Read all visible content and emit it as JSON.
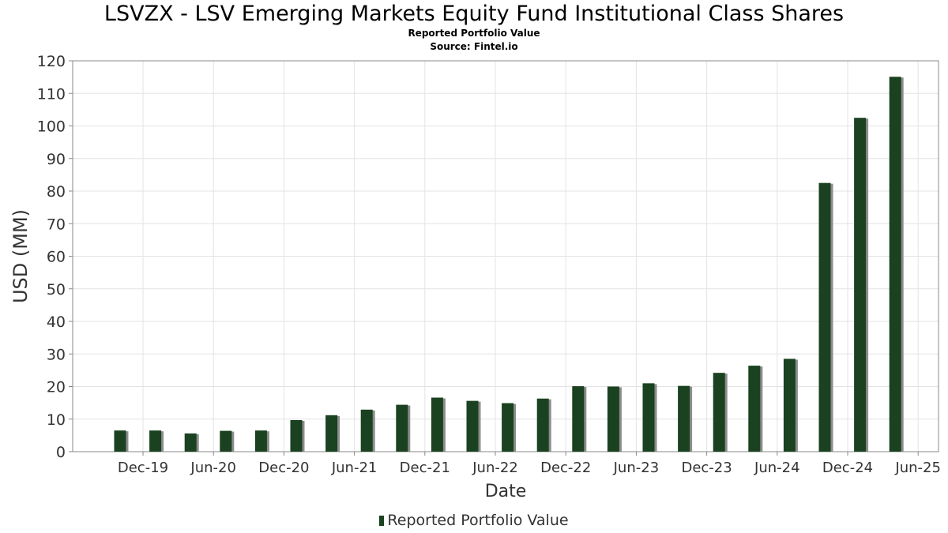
{
  "chart_data": {
    "type": "bar",
    "title": "LSVZX - LSV Emerging Markets Equity Fund Institutional Class Shares",
    "subtitles": [
      "Reported Portfolio Value",
      "Source: Fintel.io"
    ],
    "xlabel": "Date",
    "ylabel": "USD (MM)",
    "ylim": [
      0,
      120
    ],
    "yticks": [
      0,
      10,
      20,
      30,
      40,
      50,
      60,
      70,
      80,
      90,
      100,
      110,
      120
    ],
    "xtick_labels": [
      "Dec-19",
      "Jun-20",
      "Dec-20",
      "Jun-21",
      "Dec-21",
      "Jun-22",
      "Dec-22",
      "Jun-23",
      "Dec-23",
      "Jun-24",
      "Dec-24",
      "Jun-25"
    ],
    "grid": true,
    "legend_position": "bottom",
    "series": [
      {
        "name": "Reported Portfolio Value",
        "color": "#1a4220",
        "values": [
          6.5,
          6.5,
          5.6,
          6.4,
          6.5,
          9.7,
          11.2,
          12.9,
          14.4,
          16.6,
          15.6,
          14.9,
          16.3,
          20.1,
          20.0,
          21.0,
          20.2,
          24.2,
          26.4,
          28.5,
          82.5,
          102.5,
          115.1
        ]
      }
    ]
  }
}
